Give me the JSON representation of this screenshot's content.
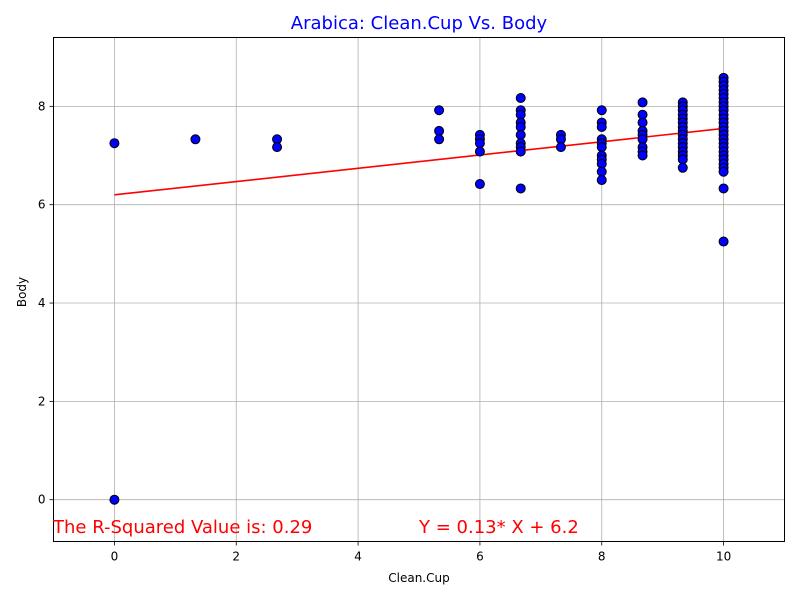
{
  "chart_data": {
    "type": "scatter",
    "title": "Arabica: Clean.Cup Vs. Body",
    "xlabel": "Clean.Cup",
    "ylabel": "Body",
    "xlim": [
      -1,
      11
    ],
    "ylim": [
      -0.85,
      9.4
    ],
    "xticks": [
      0,
      2,
      4,
      6,
      8,
      10
    ],
    "yticks": [
      0,
      2,
      4,
      6,
      8
    ],
    "grid": true,
    "points": [
      [
        0,
        7.25
      ],
      [
        0,
        0
      ],
      [
        1.33,
        7.33
      ],
      [
        2.67,
        7.33
      ],
      [
        2.67,
        7.17
      ],
      [
        5.33,
        7.92
      ],
      [
        5.33,
        7.5
      ],
      [
        5.33,
        7.33
      ],
      [
        6,
        7.42
      ],
      [
        6,
        7.33
      ],
      [
        6,
        7.25
      ],
      [
        6,
        7.08
      ],
      [
        6,
        6.42
      ],
      [
        6.67,
        8.17
      ],
      [
        6.67,
        7.92
      ],
      [
        6.67,
        7.83
      ],
      [
        6.67,
        7.67
      ],
      [
        6.67,
        7.58
      ],
      [
        6.67,
        7.42
      ],
      [
        6.67,
        7.25
      ],
      [
        6.67,
        7.17
      ],
      [
        6.67,
        7.08
      ],
      [
        6.67,
        6.33
      ],
      [
        7.33,
        7.42
      ],
      [
        7.33,
        7.33
      ],
      [
        7.33,
        7.17
      ],
      [
        8,
        7.92
      ],
      [
        8,
        7.67
      ],
      [
        8,
        7.58
      ],
      [
        8,
        7.33
      ],
      [
        8,
        7.25
      ],
      [
        8,
        7.17
      ],
      [
        8,
        7.0
      ],
      [
        8,
        6.92
      ],
      [
        8,
        6.83
      ],
      [
        8,
        6.67
      ],
      [
        8,
        6.5
      ],
      [
        8.67,
        8.08
      ],
      [
        8.67,
        7.83
      ],
      [
        8.67,
        7.67
      ],
      [
        8.67,
        7.5
      ],
      [
        8.67,
        7.42
      ],
      [
        8.67,
        7.33
      ],
      [
        8.67,
        7.17
      ],
      [
        8.67,
        7.08
      ],
      [
        8.67,
        7.0
      ],
      [
        9.33,
        8.08
      ],
      [
        9.33,
        8.0
      ],
      [
        9.33,
        7.92
      ],
      [
        9.33,
        7.83
      ],
      [
        9.33,
        7.75
      ],
      [
        9.33,
        7.67
      ],
      [
        9.33,
        7.58
      ],
      [
        9.33,
        7.5
      ],
      [
        9.33,
        7.42
      ],
      [
        9.33,
        7.33
      ],
      [
        9.33,
        7.25
      ],
      [
        9.33,
        7.17
      ],
      [
        9.33,
        7.08
      ],
      [
        9.33,
        7.0
      ],
      [
        9.33,
        6.92
      ],
      [
        9.33,
        6.75
      ],
      [
        10,
        8.58
      ],
      [
        10,
        8.5
      ],
      [
        10,
        8.42
      ],
      [
        10,
        8.33
      ],
      [
        10,
        8.25
      ],
      [
        10,
        8.17
      ],
      [
        10,
        8.08
      ],
      [
        10,
        8.0
      ],
      [
        10,
        7.92
      ],
      [
        10,
        7.83
      ],
      [
        10,
        7.75
      ],
      [
        10,
        7.67
      ],
      [
        10,
        7.58
      ],
      [
        10,
        7.5
      ],
      [
        10,
        7.42
      ],
      [
        10,
        7.33
      ],
      [
        10,
        7.25
      ],
      [
        10,
        7.17
      ],
      [
        10,
        7.08
      ],
      [
        10,
        7.0
      ],
      [
        10,
        6.92
      ],
      [
        10,
        6.83
      ],
      [
        10,
        6.75
      ],
      [
        10,
        6.67
      ],
      [
        10,
        6.33
      ],
      [
        10,
        5.25
      ]
    ],
    "regression": {
      "slope": 0.135,
      "intercept": 6.2,
      "x_range": [
        0,
        10
      ]
    },
    "marker_face_color": "#0000ff",
    "marker_edge_color": "#000000",
    "line_color": "#ff0000",
    "title_color": "#0000ff",
    "annotation_color": "#ff0000",
    "annotations": {
      "r_squared": "The R-Squared Value is: 0.29",
      "equation": "Y = 0.13* X + 6.2"
    }
  }
}
